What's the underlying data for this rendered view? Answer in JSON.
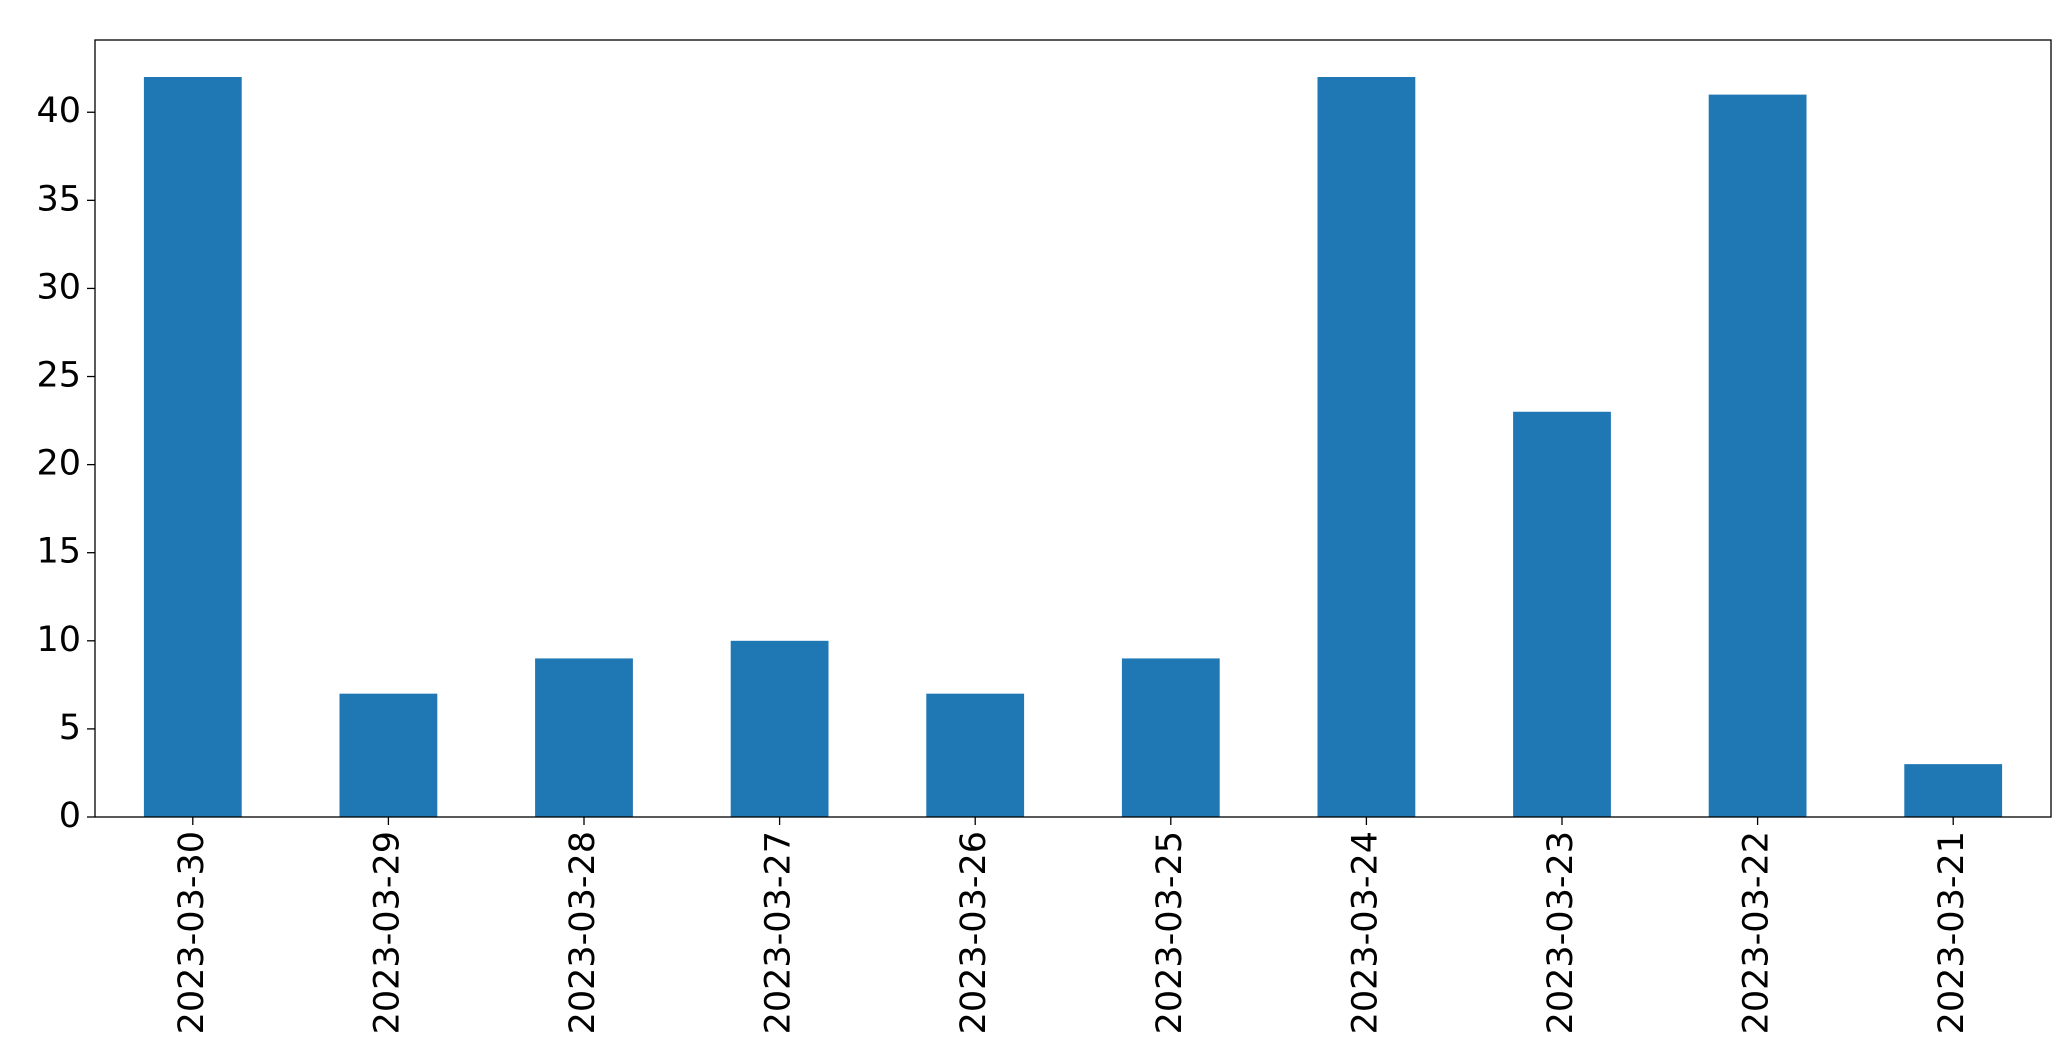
{
  "chart_data": {
    "type": "bar",
    "categories": [
      "2023-03-30",
      "2023-03-29",
      "2023-03-28",
      "2023-03-27",
      "2023-03-26",
      "2023-03-25",
      "2023-03-24",
      "2023-03-23",
      "2023-03-22",
      "2023-03-21"
    ],
    "values": [
      42,
      7,
      9,
      10,
      7,
      9,
      42,
      23,
      41,
      3
    ],
    "color": "#1f77b4",
    "ylim": [
      0,
      44.1
    ],
    "yticks": [
      0,
      5,
      10,
      15,
      20,
      25,
      30,
      35,
      40
    ],
    "grid": false
  }
}
